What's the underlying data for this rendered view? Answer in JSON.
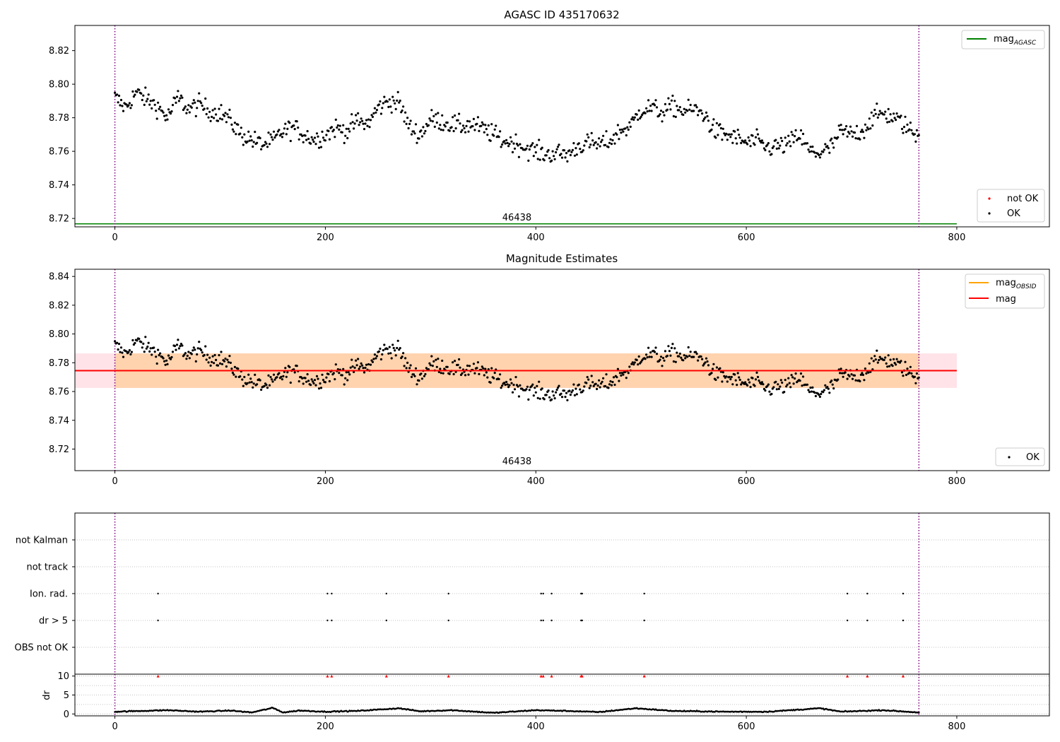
{
  "chart_data": [
    {
      "type": "scatter",
      "title": "AGASC ID 435170632",
      "xlim": [
        -38,
        888
      ],
      "ylim": [
        8.715,
        8.835
      ],
      "xticks": [
        0,
        200,
        400,
        600,
        800
      ],
      "yticks": [
        8.72,
        8.74,
        8.76,
        8.78,
        8.8,
        8.82
      ],
      "x_range": [
        0,
        764
      ],
      "y_anchors": [
        [
          0,
          8.792
        ],
        [
          10,
          8.786
        ],
        [
          20,
          8.795
        ],
        [
          30,
          8.791
        ],
        [
          40,
          8.787
        ],
        [
          50,
          8.78
        ],
        [
          60,
          8.792
        ],
        [
          70,
          8.785
        ],
        [
          80,
          8.788
        ],
        [
          90,
          8.784
        ],
        [
          100,
          8.783
        ],
        [
          110,
          8.778
        ],
        [
          120,
          8.77
        ],
        [
          130,
          8.767
        ],
        [
          140,
          8.764
        ],
        [
          150,
          8.766
        ],
        [
          160,
          8.772
        ],
        [
          170,
          8.774
        ],
        [
          180,
          8.77
        ],
        [
          190,
          8.767
        ],
        [
          200,
          8.77
        ],
        [
          210,
          8.774
        ],
        [
          220,
          8.772
        ],
        [
          230,
          8.778
        ],
        [
          240,
          8.776
        ],
        [
          250,
          8.786
        ],
        [
          260,
          8.79
        ],
        [
          270,
          8.789
        ],
        [
          280,
          8.774
        ],
        [
          290,
          8.77
        ],
        [
          300,
          8.779
        ],
        [
          310,
          8.778
        ],
        [
          320,
          8.776
        ],
        [
          330,
          8.775
        ],
        [
          340,
          8.776
        ],
        [
          350,
          8.773
        ],
        [
          360,
          8.77
        ],
        [
          370,
          8.766
        ],
        [
          380,
          8.765
        ],
        [
          390,
          8.762
        ],
        [
          400,
          8.76
        ],
        [
          410,
          8.758
        ],
        [
          420,
          8.759
        ],
        [
          430,
          8.758
        ],
        [
          440,
          8.763
        ],
        [
          450,
          8.765
        ],
        [
          460,
          8.764
        ],
        [
          470,
          8.766
        ],
        [
          480,
          8.772
        ],
        [
          490,
          8.775
        ],
        [
          500,
          8.785
        ],
        [
          510,
          8.786
        ],
        [
          520,
          8.783
        ],
        [
          530,
          8.787
        ],
        [
          540,
          8.784
        ],
        [
          550,
          8.785
        ],
        [
          560,
          8.782
        ],
        [
          570,
          8.772
        ],
        [
          580,
          8.77
        ],
        [
          590,
          8.768
        ],
        [
          600,
          8.765
        ],
        [
          610,
          8.766
        ],
        [
          620,
          8.762
        ],
        [
          630,
          8.763
        ],
        [
          640,
          8.764
        ],
        [
          650,
          8.77
        ],
        [
          660,
          8.76
        ],
        [
          670,
          8.759
        ],
        [
          680,
          8.762
        ],
        [
          690,
          8.772
        ],
        [
          700,
          8.77
        ],
        [
          710,
          8.772
        ],
        [
          720,
          8.78
        ],
        [
          730,
          8.783
        ],
        [
          740,
          8.78
        ],
        [
          750,
          8.776
        ],
        [
          760,
          8.77
        ],
        [
          764,
          8.772
        ]
      ],
      "scatter_noise": 0.0055,
      "vlines": [
        0,
        764
      ],
      "hlines": [
        {
          "y": 8.7168,
          "name": "mag_AGASC",
          "color": "#008000"
        }
      ],
      "annotation": {
        "text": "46438",
        "x": 382
      },
      "legends": [
        {
          "position": "top-right",
          "entries": [
            {
              "label": "mag",
              "sub": "AGASC",
              "kind": "line",
              "color": "#008000"
            }
          ]
        },
        {
          "position": "bottom-right",
          "entries": [
            {
              "label": "not OK",
              "kind": "dot",
              "color": "#ff0000"
            },
            {
              "label": "OK",
              "kind": "dot",
              "color": "#000000"
            }
          ]
        }
      ]
    },
    {
      "type": "scatter",
      "title": "Magnitude Estimates",
      "xlim": [
        -38,
        888
      ],
      "ylim": [
        8.705,
        8.845
      ],
      "xticks": [
        0,
        200,
        400,
        600,
        800
      ],
      "yticks": [
        8.72,
        8.74,
        8.76,
        8.78,
        8.8,
        8.82,
        8.84
      ],
      "vlines": [
        0,
        764
      ],
      "hlines": [
        {
          "y": 8.7745,
          "name": "mag",
          "color": "#ff0000"
        }
      ],
      "bands": [
        {
          "y0": 8.7625,
          "y1": 8.7865,
          "x0": -38,
          "x1": 800,
          "color": "#ffc0cb",
          "opacity": 0.45
        },
        {
          "y0": 8.7625,
          "y1": 8.7865,
          "x0": 0,
          "x1": 764,
          "color": "#ffa500",
          "opacity": 0.25
        }
      ],
      "annotation": {
        "text": "46438",
        "x": 382
      },
      "legends": [
        {
          "position": "top-right",
          "entries": [
            {
              "label": "mag",
              "sub": "OBSID",
              "kind": "line",
              "color": "#ffa500"
            },
            {
              "label": "mag",
              "kind": "line",
              "color": "#ff0000"
            }
          ]
        },
        {
          "position": "bottom-right",
          "entries": [
            {
              "label": "OK",
              "kind": "dot",
              "color": "#000000"
            }
          ]
        }
      ]
    },
    {
      "type": "scatter",
      "xlim": [
        -38,
        888
      ],
      "categories": [
        "not Kalman",
        "not track",
        "Ion. rad.",
        "dr > 5",
        "OBS not OK"
      ],
      "flag_x": [
        41,
        202,
        206,
        258,
        317,
        405,
        407,
        415,
        443,
        444,
        503,
        696,
        715,
        749
      ],
      "flag_rows": [
        "Ion. rad.",
        "dr > 5"
      ],
      "vlines": [
        0,
        764
      ]
    },
    {
      "type": "scatter",
      "ylabel": "dr",
      "xlim": [
        -38,
        888
      ],
      "ylim": [
        -0.5,
        10.5
      ],
      "xticks": [
        0,
        200,
        400,
        600,
        800
      ],
      "yticks": [
        0,
        5,
        10
      ],
      "dr_anchors": [
        [
          0,
          0.6
        ],
        [
          50,
          1.0
        ],
        [
          80,
          0.6
        ],
        [
          110,
          0.9
        ],
        [
          130,
          0.4
        ],
        [
          150,
          1.6
        ],
        [
          160,
          0.4
        ],
        [
          175,
          0.9
        ],
        [
          200,
          0.6
        ],
        [
          230,
          0.8
        ],
        [
          270,
          1.5
        ],
        [
          290,
          0.7
        ],
        [
          320,
          1.0
        ],
        [
          360,
          0.3
        ],
        [
          400,
          1.0
        ],
        [
          430,
          0.8
        ],
        [
          460,
          0.5
        ],
        [
          495,
          1.5
        ],
        [
          530,
          0.8
        ],
        [
          580,
          0.6
        ],
        [
          620,
          0.6
        ],
        [
          670,
          1.5
        ],
        [
          690,
          0.6
        ],
        [
          730,
          1.0
        ],
        [
          764,
          0.4
        ]
      ],
      "flagged_value": 10,
      "vlines": [
        0,
        764
      ]
    }
  ]
}
